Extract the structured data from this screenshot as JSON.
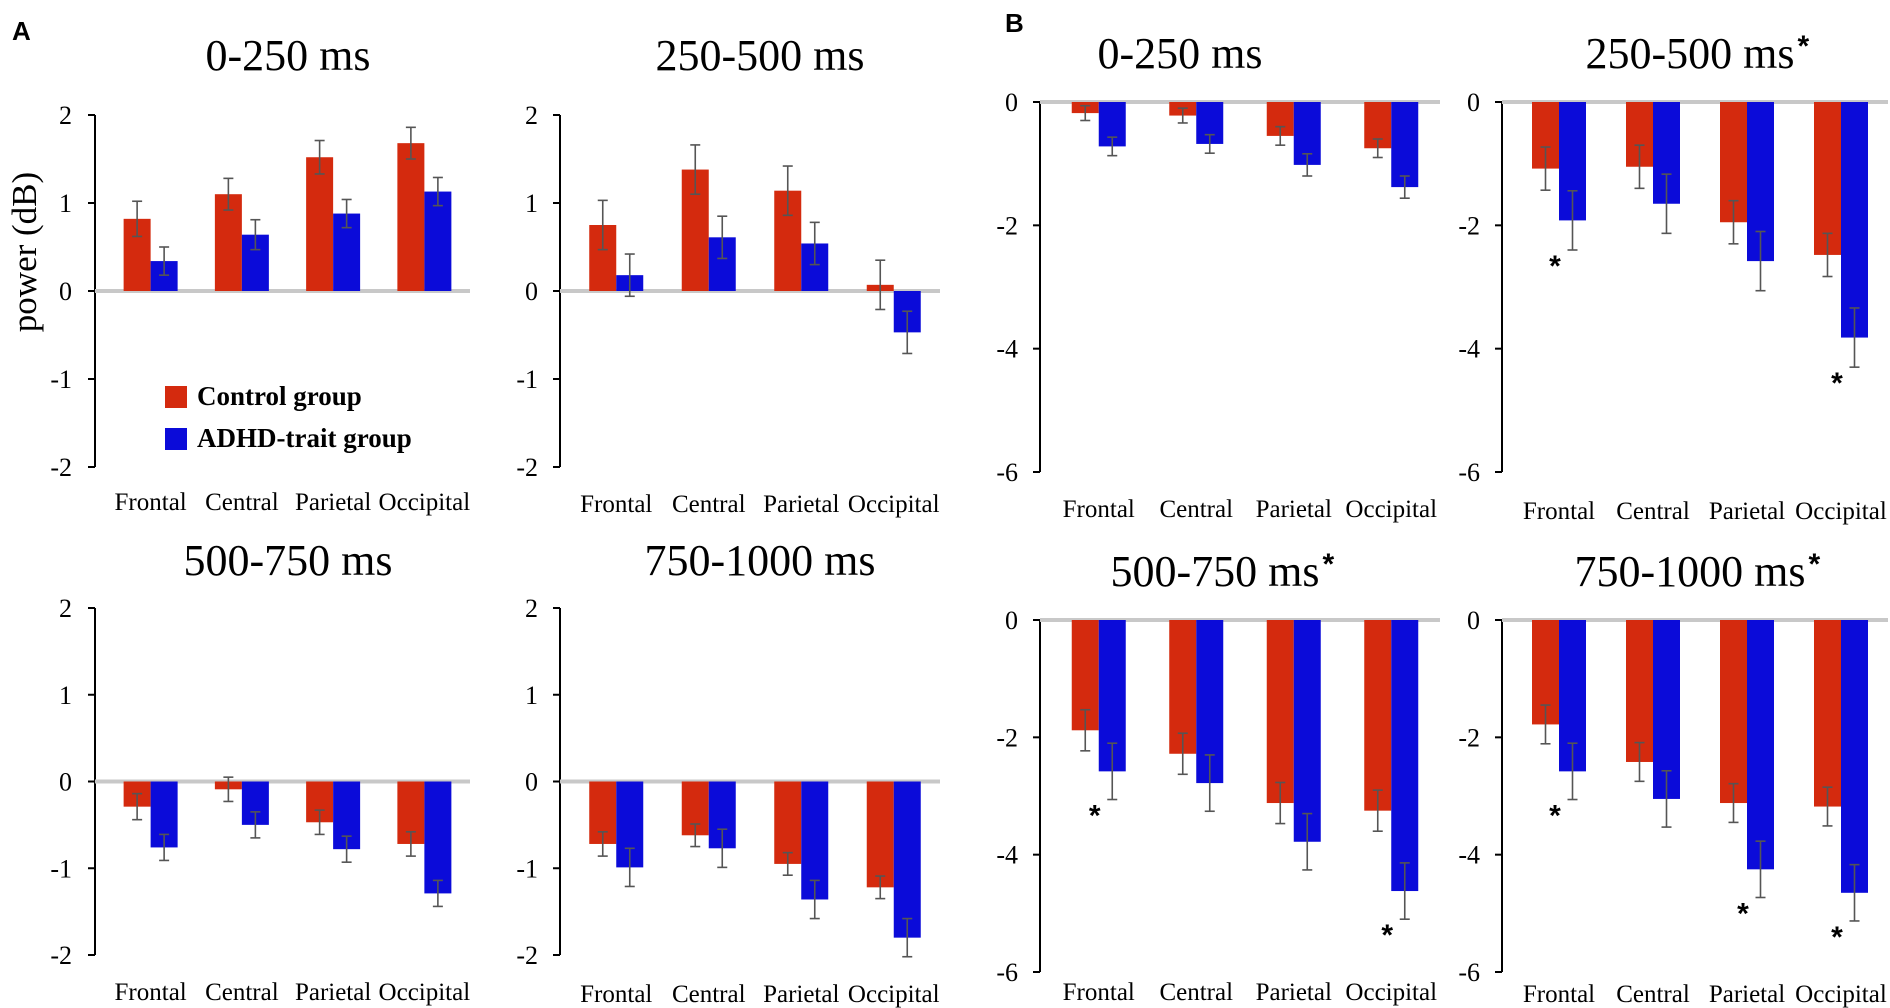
{
  "panel_labels": [
    "A",
    "B"
  ],
  "y_axis_label": "power (dB)",
  "colors": {
    "control": "#d42a0e",
    "adhd": "#0b0bd9",
    "error": "#555555",
    "zero_line": "#c8c8c8"
  },
  "legend": {
    "items": [
      "Control group",
      "ADHD-trait group"
    ],
    "placement": "inside first chart, lower-left"
  },
  "chart_data": [
    {
      "type": "bar",
      "panel": "A",
      "title": "0-250 ms",
      "significant": false,
      "categories": [
        "Frontal",
        "Central",
        "Parietal",
        "Occipital"
      ],
      "ylim": [
        -2,
        2
      ],
      "yticks": [
        "2",
        "1",
        "0",
        "-1",
        "-2"
      ],
      "series": [
        {
          "name": "Control group",
          "values": [
            0.82,
            1.1,
            1.52,
            1.68
          ],
          "errors": [
            0.2,
            0.18,
            0.19,
            0.18
          ],
          "sig": [
            false,
            false,
            false,
            false
          ]
        },
        {
          "name": "ADHD-trait group",
          "values": [
            0.34,
            0.64,
            0.88,
            1.13
          ],
          "errors": [
            0.16,
            0.17,
            0.16,
            0.16
          ],
          "sig": [
            false,
            false,
            false,
            false
          ]
        }
      ]
    },
    {
      "type": "bar",
      "panel": "A",
      "title": "250-500 ms",
      "significant": false,
      "categories": [
        "Frontal",
        "Central",
        "Parietal",
        "Occipital"
      ],
      "ylim": [
        -2,
        2
      ],
      "yticks": [
        "2",
        "1",
        "0",
        "-1",
        "-2"
      ],
      "series": [
        {
          "name": "Control group",
          "values": [
            0.75,
            1.38,
            1.14,
            0.07
          ],
          "errors": [
            0.28,
            0.28,
            0.28,
            0.28
          ],
          "sig": [
            false,
            false,
            false,
            false
          ]
        },
        {
          "name": "ADHD-trait group",
          "values": [
            0.18,
            0.61,
            0.54,
            -0.47
          ],
          "errors": [
            0.24,
            0.24,
            0.24,
            0.24
          ],
          "sig": [
            false,
            false,
            false,
            false
          ]
        }
      ]
    },
    {
      "type": "bar",
      "panel": "A",
      "title": "500-750 ms",
      "significant": false,
      "categories": [
        "Frontal",
        "Central",
        "Parietal",
        "Occipital"
      ],
      "ylim": [
        -2,
        2
      ],
      "yticks": [
        "2",
        "1",
        "0",
        "-1",
        "-2"
      ],
      "series": [
        {
          "name": "Control group",
          "values": [
            -0.29,
            -0.09,
            -0.47,
            -0.72
          ],
          "errors": [
            0.15,
            0.14,
            0.14,
            0.14
          ],
          "sig": [
            false,
            false,
            false,
            false
          ]
        },
        {
          "name": "ADHD-trait group",
          "values": [
            -0.76,
            -0.5,
            -0.78,
            -1.29
          ],
          "errors": [
            0.15,
            0.15,
            0.15,
            0.15
          ],
          "sig": [
            false,
            false,
            false,
            false
          ]
        }
      ]
    },
    {
      "type": "bar",
      "panel": "A",
      "title": "750-1000 ms",
      "significant": false,
      "categories": [
        "Frontal",
        "Central",
        "Parietal",
        "Occipital"
      ],
      "ylim": [
        -2,
        2
      ],
      "yticks": [
        "2",
        "1",
        "0",
        "-1",
        "-2"
      ],
      "series": [
        {
          "name": "Control group",
          "values": [
            -0.72,
            -0.62,
            -0.95,
            -1.22
          ],
          "errors": [
            0.14,
            0.13,
            0.13,
            0.13
          ],
          "sig": [
            false,
            false,
            false,
            false
          ]
        },
        {
          "name": "ADHD-trait group",
          "values": [
            -0.99,
            -0.77,
            -1.36,
            -1.8
          ],
          "errors": [
            0.22,
            0.22,
            0.22,
            0.22
          ],
          "sig": [
            false,
            false,
            false,
            false
          ]
        }
      ]
    },
    {
      "type": "bar",
      "panel": "B",
      "title": "0-250 ms",
      "significant": false,
      "categories": [
        "Frontal",
        "Central",
        "Parietal",
        "Occipital"
      ],
      "ylim": [
        -6,
        0
      ],
      "yticks": [
        "0",
        "-2",
        "-4",
        "-6"
      ],
      "series": [
        {
          "name": "Control group",
          "values": [
            -0.18,
            -0.22,
            -0.55,
            -0.75
          ],
          "errors": [
            0.12,
            0.12,
            0.15,
            0.15
          ],
          "sig": [
            false,
            false,
            false,
            false
          ]
        },
        {
          "name": "ADHD-trait group",
          "values": [
            -0.72,
            -0.68,
            -1.02,
            -1.38
          ],
          "errors": [
            0.15,
            0.15,
            0.18,
            0.18
          ],
          "sig": [
            false,
            false,
            false,
            false
          ]
        }
      ]
    },
    {
      "type": "bar",
      "panel": "B",
      "title": "250-500 ms",
      "significant": true,
      "categories": [
        "Frontal",
        "Central",
        "Parietal",
        "Occipital"
      ],
      "ylim": [
        -6,
        0
      ],
      "yticks": [
        "0",
        "-2",
        "-4",
        "-6"
      ],
      "series": [
        {
          "name": "Control group",
          "values": [
            -1.08,
            -1.05,
            -1.95,
            -2.48
          ],
          "errors": [
            0.35,
            0.35,
            0.35,
            0.35
          ],
          "sig": [
            false,
            false,
            false,
            false
          ]
        },
        {
          "name": "ADHD-trait group",
          "values": [
            -1.92,
            -1.65,
            -2.58,
            -3.82
          ],
          "errors": [
            0.48,
            0.48,
            0.48,
            0.48
          ],
          "sig": [
            true,
            false,
            false,
            true
          ]
        }
      ]
    },
    {
      "type": "bar",
      "panel": "B",
      "title": "500-750 ms",
      "significant": true,
      "categories": [
        "Frontal",
        "Central",
        "Parietal",
        "Occipital"
      ],
      "ylim": [
        -6,
        0
      ],
      "yticks": [
        "0",
        "-2",
        "-4",
        "-6"
      ],
      "series": [
        {
          "name": "Control group",
          "values": [
            -1.88,
            -2.28,
            -3.12,
            -3.25
          ],
          "errors": [
            0.35,
            0.35,
            0.35,
            0.35
          ],
          "sig": [
            false,
            false,
            false,
            false
          ]
        },
        {
          "name": "ADHD-trait group",
          "values": [
            -2.58,
            -2.78,
            -3.78,
            -4.62
          ],
          "errors": [
            0.48,
            0.48,
            0.48,
            0.48
          ],
          "sig": [
            true,
            false,
            false,
            true
          ]
        }
      ]
    },
    {
      "type": "bar",
      "panel": "B",
      "title": "750-1000 ms",
      "significant": true,
      "categories": [
        "Frontal",
        "Central",
        "Parietal",
        "Occipital"
      ],
      "ylim": [
        -6,
        0
      ],
      "yticks": [
        "0",
        "-2",
        "-4",
        "-6"
      ],
      "series": [
        {
          "name": "Control group",
          "values": [
            -1.78,
            -2.42,
            -3.12,
            -3.18
          ],
          "errors": [
            0.33,
            0.33,
            0.33,
            0.33
          ],
          "sig": [
            false,
            false,
            false,
            false
          ]
        },
        {
          "name": "ADHD-trait group",
          "values": [
            -2.58,
            -3.05,
            -4.25,
            -4.65
          ],
          "errors": [
            0.48,
            0.48,
            0.48,
            0.48
          ],
          "sig": [
            true,
            false,
            true,
            true
          ]
        }
      ]
    }
  ]
}
